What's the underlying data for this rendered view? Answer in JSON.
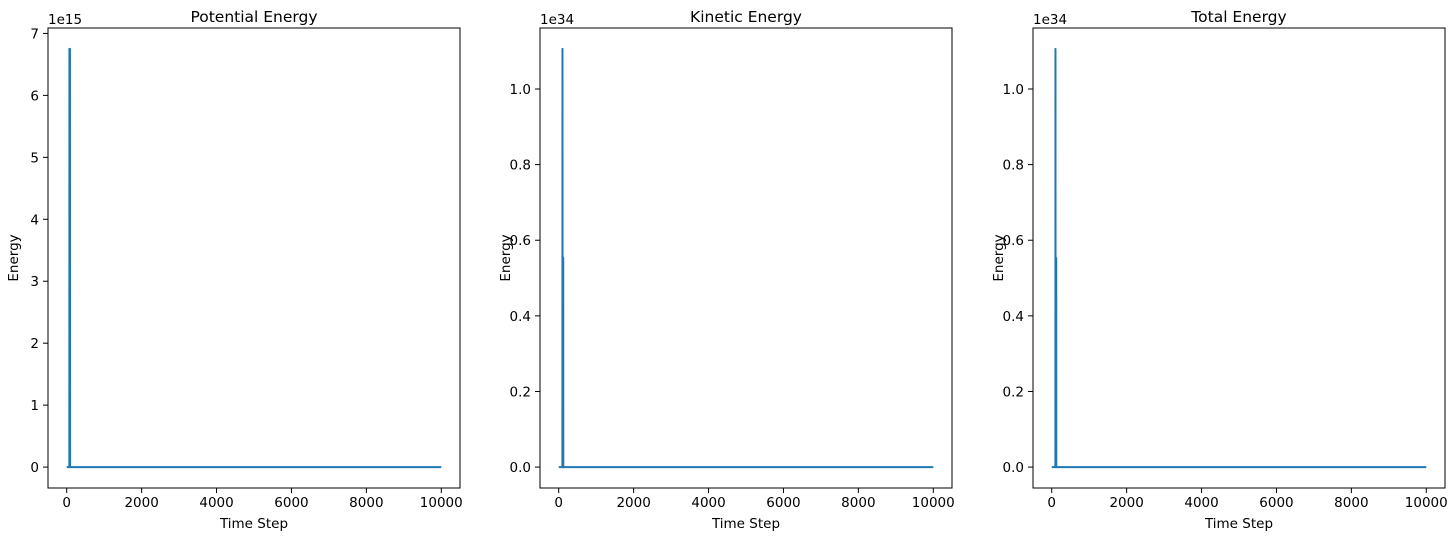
{
  "chart_data": [
    {
      "type": "line",
      "title": "Potential Energy",
      "xlabel": "Time Step",
      "ylabel": "Energy",
      "offset_label": "1e15",
      "xlim": [
        -500,
        10500
      ],
      "ylim": [
        -0.3375,
        7.0875
      ],
      "xticks": [
        0,
        2000,
        4000,
        6000,
        8000,
        10000
      ],
      "xtick_labels": [
        "0",
        "2000",
        "4000",
        "6000",
        "8000",
        "10000"
      ],
      "yticks": [
        0,
        1,
        2,
        3,
        4,
        5,
        6,
        7
      ],
      "ytick_labels": [
        "0",
        "1",
        "2",
        "3",
        "4",
        "5",
        "6",
        "7"
      ],
      "grid": false,
      "series": [
        {
          "color": "#1f77b4",
          "x": [
            0,
            70,
            72,
            78,
            80,
            84,
            86,
            90,
            92,
            10000
          ],
          "y": [
            0,
            0,
            6.75,
            0,
            6.75,
            0,
            6.75,
            0,
            0,
            0
          ]
        }
      ]
    },
    {
      "type": "line",
      "title": "Kinetic Energy",
      "xlabel": "Time Step",
      "ylabel": "Energy",
      "offset_label": "1e34",
      "xlim": [
        -500,
        10500
      ],
      "ylim": [
        -0.0553,
        1.1613
      ],
      "xticks": [
        0,
        2000,
        4000,
        6000,
        8000,
        10000
      ],
      "xtick_labels": [
        "0",
        "2000",
        "4000",
        "6000",
        "8000",
        "10000"
      ],
      "yticks": [
        0,
        0.2,
        0.4,
        0.6,
        0.8,
        1.0
      ],
      "ytick_labels": [
        "0.0",
        "0.2",
        "0.4",
        "0.6",
        "0.8",
        "1.0"
      ],
      "grid": false,
      "series": [
        {
          "color": "#1f77b4",
          "x": [
            0,
            98,
            100,
            102,
            118,
            120,
            122,
            10000
          ],
          "y": [
            0,
            0,
            1.106,
            0,
            0,
            0.553,
            0,
            0
          ]
        }
      ]
    },
    {
      "type": "line",
      "title": "Total Energy",
      "xlabel": "Time Step",
      "ylabel": "Energy",
      "offset_label": "1e34",
      "xlim": [
        -500,
        10500
      ],
      "ylim": [
        -0.0553,
        1.1613
      ],
      "xticks": [
        0,
        2000,
        4000,
        6000,
        8000,
        10000
      ],
      "xtick_labels": [
        "0",
        "2000",
        "4000",
        "6000",
        "8000",
        "10000"
      ],
      "yticks": [
        0,
        0.2,
        0.4,
        0.6,
        0.8,
        1.0
      ],
      "ytick_labels": [
        "0.0",
        "0.2",
        "0.4",
        "0.6",
        "0.8",
        "1.0"
      ],
      "grid": false,
      "series": [
        {
          "color": "#1f77b4",
          "x": [
            0,
            98,
            100,
            102,
            118,
            120,
            122,
            10000
          ],
          "y": [
            0,
            0,
            1.106,
            0,
            0,
            0.553,
            0,
            0
          ]
        }
      ]
    }
  ]
}
